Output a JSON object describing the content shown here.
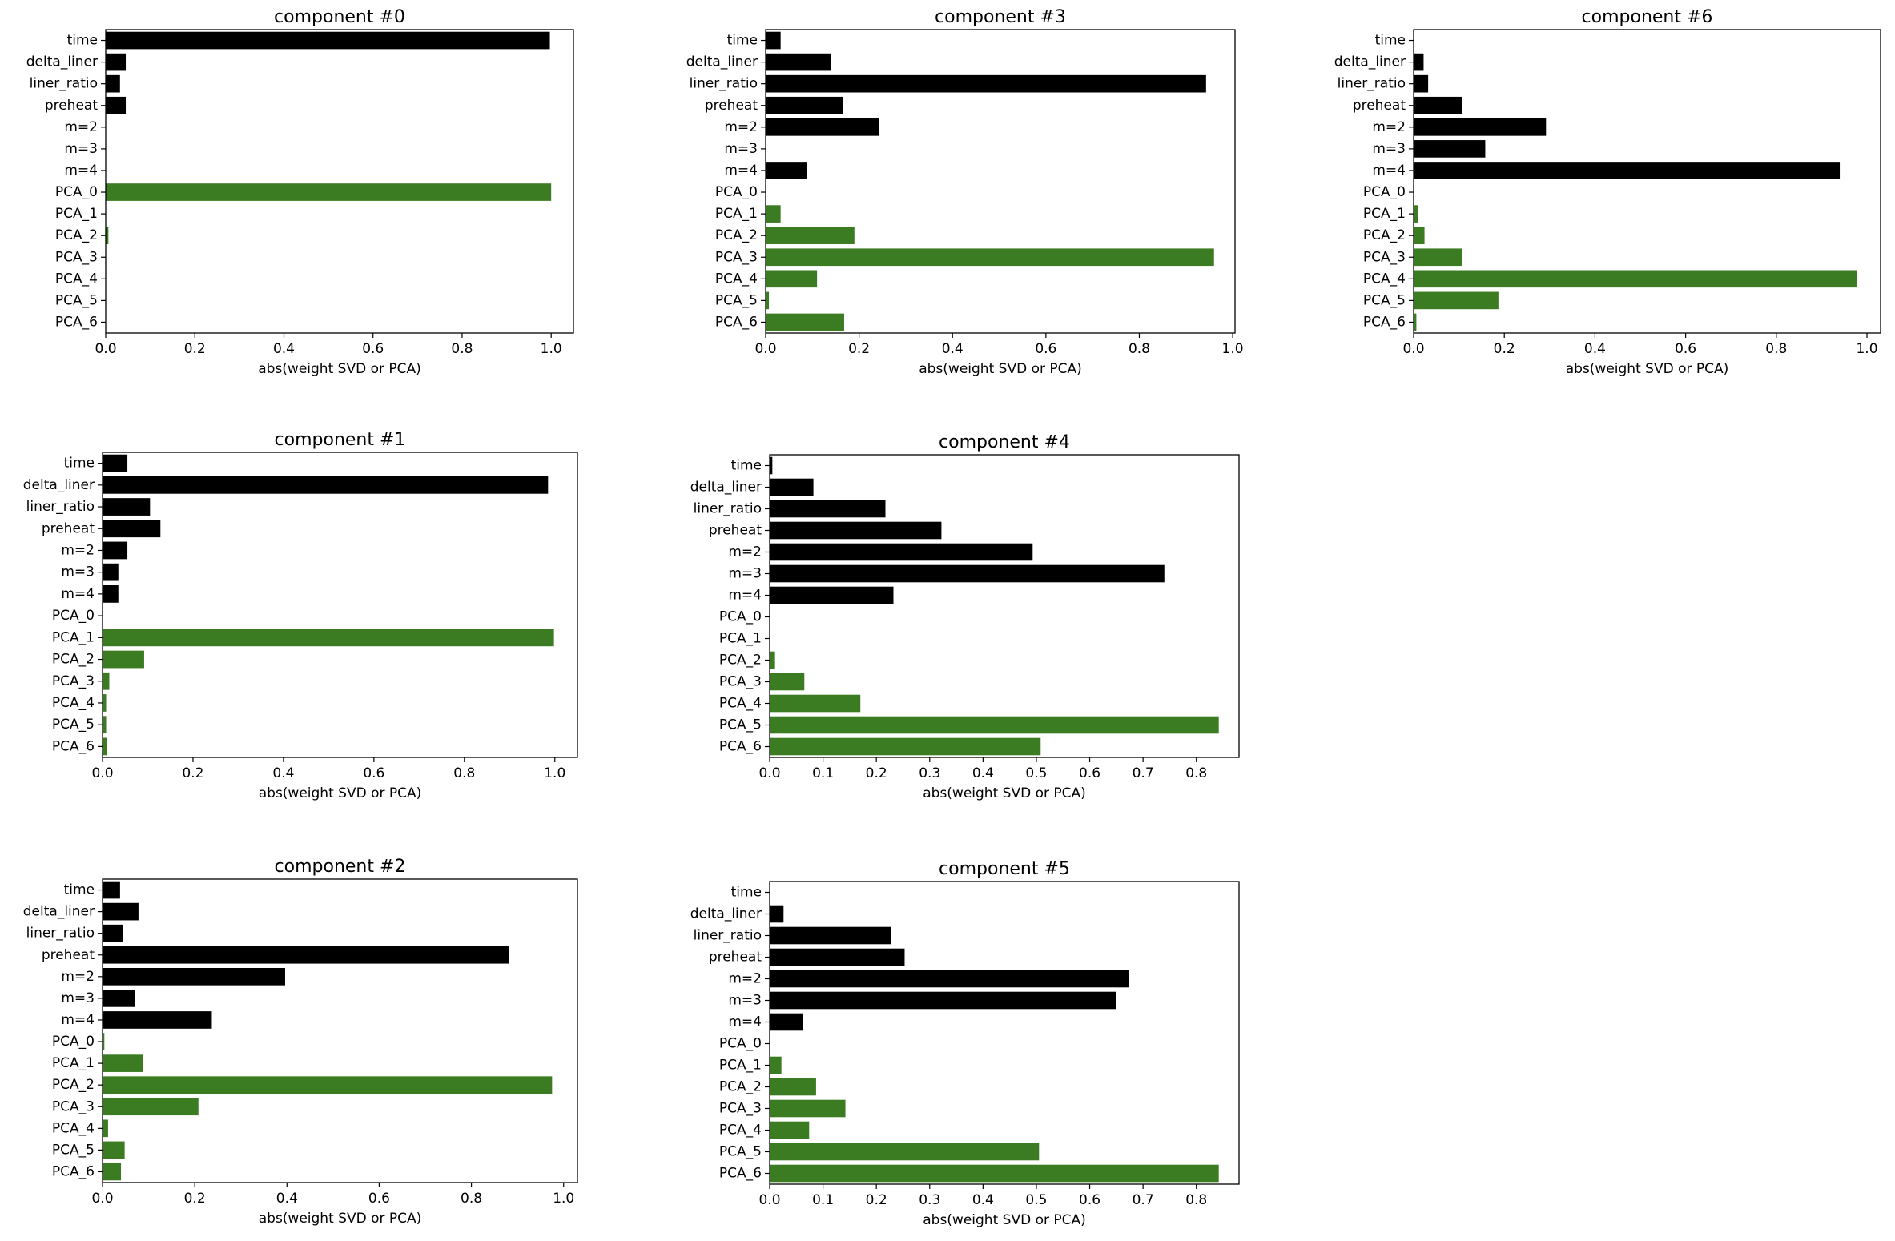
{
  "colors": {
    "feature_bar": "#000000",
    "pca_bar": "#3b7b22",
    "axes": "#000000",
    "background": "#ffffff"
  },
  "chart_data": [
    {
      "type": "bar",
      "orientation": "horizontal",
      "title": "component #0",
      "xlabel": "abs(weight SVD or PCA)",
      "ylabel": "",
      "xlim": [
        0,
        1.05
      ],
      "xticks": [
        "0.0",
        "0.2",
        "0.4",
        "0.6",
        "0.8",
        "1.0"
      ],
      "categories": [
        "time",
        "delta_liner",
        "liner_ratio",
        "preheat",
        "m=2",
        "m=3",
        "m=4",
        "PCA_0",
        "PCA_1",
        "PCA_2",
        "PCA_3",
        "PCA_4",
        "PCA_5",
        "PCA_6"
      ],
      "values": [
        0.997,
        0.045,
        0.032,
        0.045,
        0,
        0,
        0,
        1.0,
        0,
        0.006,
        0,
        0,
        0,
        0
      ]
    },
    {
      "type": "bar",
      "orientation": "horizontal",
      "title": "component #1",
      "xlabel": "abs(weight SVD or PCA)",
      "ylabel": "",
      "xlim": [
        0,
        1.05
      ],
      "xticks": [
        "0.0",
        "0.2",
        "0.4",
        "0.6",
        "0.8",
        "1.0"
      ],
      "categories": [
        "time",
        "delta_liner",
        "liner_ratio",
        "preheat",
        "m=2",
        "m=3",
        "m=4",
        "PCA_0",
        "PCA_1",
        "PCA_2",
        "PCA_3",
        "PCA_4",
        "PCA_5",
        "PCA_6"
      ],
      "values": [
        0.055,
        0.985,
        0.105,
        0.128,
        0.055,
        0.035,
        0.035,
        0.0,
        0.998,
        0.092,
        0.015,
        0.008,
        0.008,
        0.01
      ]
    },
    {
      "type": "bar",
      "orientation": "horizontal",
      "title": "component #2",
      "xlabel": "abs(weight SVD or PCA)",
      "ylabel": "",
      "xlim": [
        0,
        1.03
      ],
      "xticks": [
        "0.0",
        "0.2",
        "0.4",
        "0.6",
        "0.8",
        "1.0"
      ],
      "categories": [
        "time",
        "delta_liner",
        "liner_ratio",
        "preheat",
        "m=2",
        "m=3",
        "m=4",
        "PCA_0",
        "PCA_1",
        "PCA_2",
        "PCA_3",
        "PCA_4",
        "PCA_5",
        "PCA_6"
      ],
      "values": [
        0.038,
        0.078,
        0.045,
        0.882,
        0.396,
        0.07,
        0.237,
        0.004,
        0.087,
        0.975,
        0.208,
        0.012,
        0.048,
        0.04
      ]
    },
    {
      "type": "bar",
      "orientation": "horizontal",
      "title": "component #3",
      "xlabel": "abs(weight SVD or PCA)",
      "ylabel": "",
      "xlim": [
        0,
        1.005
      ],
      "xticks": [
        "0.0",
        "0.2",
        "0.4",
        "0.6",
        "0.8",
        "1.0"
      ],
      "categories": [
        "time",
        "delta_liner",
        "liner_ratio",
        "preheat",
        "m=2",
        "m=3",
        "m=4",
        "PCA_0",
        "PCA_1",
        "PCA_2",
        "PCA_3",
        "PCA_4",
        "PCA_5",
        "PCA_6"
      ],
      "values": [
        0.032,
        0.14,
        0.943,
        0.165,
        0.242,
        0.0,
        0.088,
        0.0,
        0.032,
        0.19,
        0.96,
        0.11,
        0.007,
        0.168
      ]
    },
    {
      "type": "bar",
      "orientation": "horizontal",
      "title": "component #4",
      "xlabel": "abs(weight SVD or PCA)",
      "ylabel": "",
      "xlim": [
        0,
        0.88
      ],
      "xticks": [
        "0.0",
        "0.1",
        "0.2",
        "0.3",
        "0.4",
        "0.5",
        "0.6",
        "0.7",
        "0.8"
      ],
      "categories": [
        "time",
        "delta_liner",
        "liner_ratio",
        "preheat",
        "m=2",
        "m=3",
        "m=4",
        "PCA_0",
        "PCA_1",
        "PCA_2",
        "PCA_3",
        "PCA_4",
        "PCA_5",
        "PCA_6"
      ],
      "values": [
        0.005,
        0.082,
        0.217,
        0.322,
        0.493,
        0.74,
        0.232,
        0.0,
        0.0,
        0.01,
        0.065,
        0.17,
        0.842,
        0.508
      ]
    },
    {
      "type": "bar",
      "orientation": "horizontal",
      "title": "component #5",
      "xlabel": "abs(weight SVD or PCA)",
      "ylabel": "",
      "xlim": [
        0,
        0.88
      ],
      "xticks": [
        "0.0",
        "0.1",
        "0.2",
        "0.3",
        "0.4",
        "0.5",
        "0.6",
        "0.7",
        "0.8"
      ],
      "categories": [
        "time",
        "delta_liner",
        "liner_ratio",
        "preheat",
        "m=2",
        "m=3",
        "m=4",
        "PCA_0",
        "PCA_1",
        "PCA_2",
        "PCA_3",
        "PCA_4",
        "PCA_5",
        "PCA_6"
      ],
      "values": [
        0.0,
        0.026,
        0.228,
        0.253,
        0.673,
        0.65,
        0.063,
        0.0,
        0.022,
        0.087,
        0.142,
        0.074,
        0.505,
        0.842
      ]
    },
    {
      "type": "bar",
      "orientation": "horizontal",
      "title": "component #6",
      "xlabel": "abs(weight SVD or PCA)",
      "ylabel": "",
      "xlim": [
        0,
        1.03
      ],
      "xticks": [
        "0.0",
        "0.2",
        "0.4",
        "0.6",
        "0.8",
        "1.0"
      ],
      "categories": [
        "time",
        "delta_liner",
        "liner_ratio",
        "preheat",
        "m=2",
        "m=3",
        "m=4",
        "PCA_0",
        "PCA_1",
        "PCA_2",
        "PCA_3",
        "PCA_4",
        "PCA_5",
        "PCA_6"
      ],
      "values": [
        0.0,
        0.022,
        0.032,
        0.107,
        0.292,
        0.158,
        0.94,
        0.0,
        0.009,
        0.024,
        0.107,
        0.977,
        0.187,
        0.006
      ]
    }
  ]
}
